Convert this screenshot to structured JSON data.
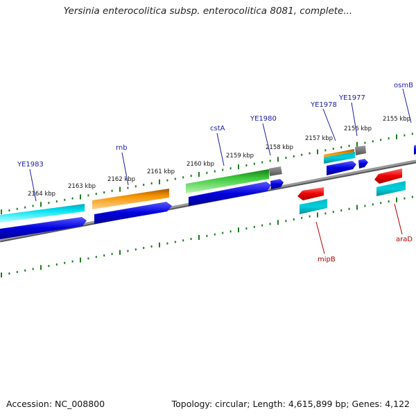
{
  "title": "Yersinia enterocolitica subsp. enterocolitica 8081, complete...",
  "accession": "Accession: NC_008800",
  "topology": "Topology: circular; Length: 4,615,899 bp; Genes: 4,122",
  "tick_labels": [
    "2164 kbp",
    "2163 kbp",
    "2162 kbp",
    "2161 kbp",
    "2160 kbp",
    "2159 kbp",
    "2158 kbp",
    "2157 kbp",
    "2156 kbp",
    "2155 kbp"
  ],
  "forward_genes": [
    "YE1983",
    "rnb",
    "cstA",
    "YE1980",
    "YE1978",
    "YE1977",
    "osmB"
  ],
  "reverse_genes": [
    "mipB",
    "araD"
  ],
  "colors": {
    "backbone": "#7d7d7d",
    "ticks": "#1e7a1e",
    "cds_blue": "#0000dd",
    "gene_cyan": "#00d8e8",
    "gene_orange": "#f08c00",
    "gene_green": "#33bb33",
    "gene_red": "#ee0000",
    "gene_teal": "#00bcc8",
    "gene_gray": "#707070",
    "fwd_label": "#1a1aa8",
    "rev_label": "#b00000"
  }
}
